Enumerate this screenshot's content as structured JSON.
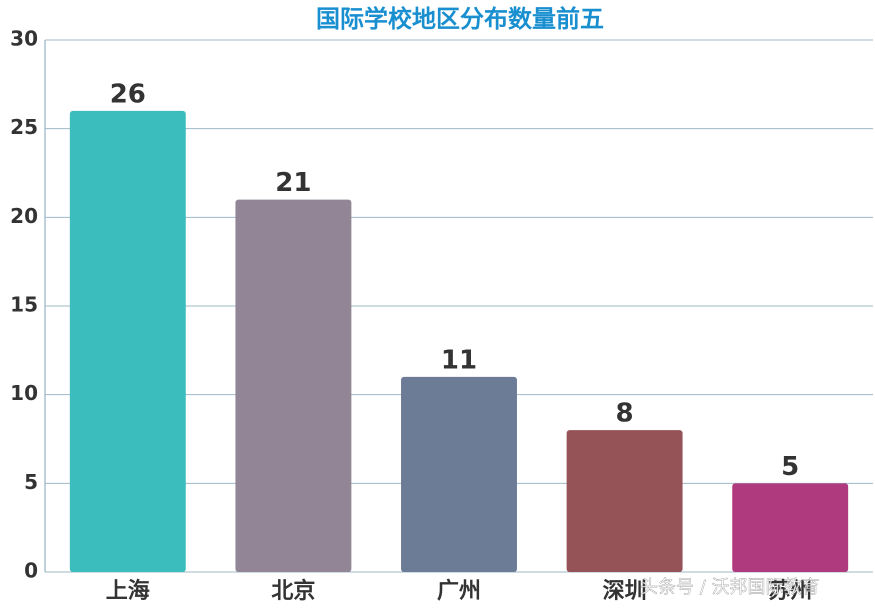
{
  "chart_data": {
    "type": "bar",
    "title": "国际学校地区分布数量前五",
    "categories": [
      "上海",
      "北京",
      "广州",
      "深圳",
      "苏州"
    ],
    "values": [
      26,
      21,
      11,
      8,
      5
    ],
    "colors": [
      "#3bbdbd",
      "#928596",
      "#6c7b96",
      "#955257",
      "#b03a7e"
    ],
    "ylim": [
      0,
      30
    ],
    "yticks": [
      0,
      5,
      10,
      15,
      20,
      25,
      30
    ],
    "grid": true,
    "watermark": "头条号 / 沃邦国际教育"
  }
}
